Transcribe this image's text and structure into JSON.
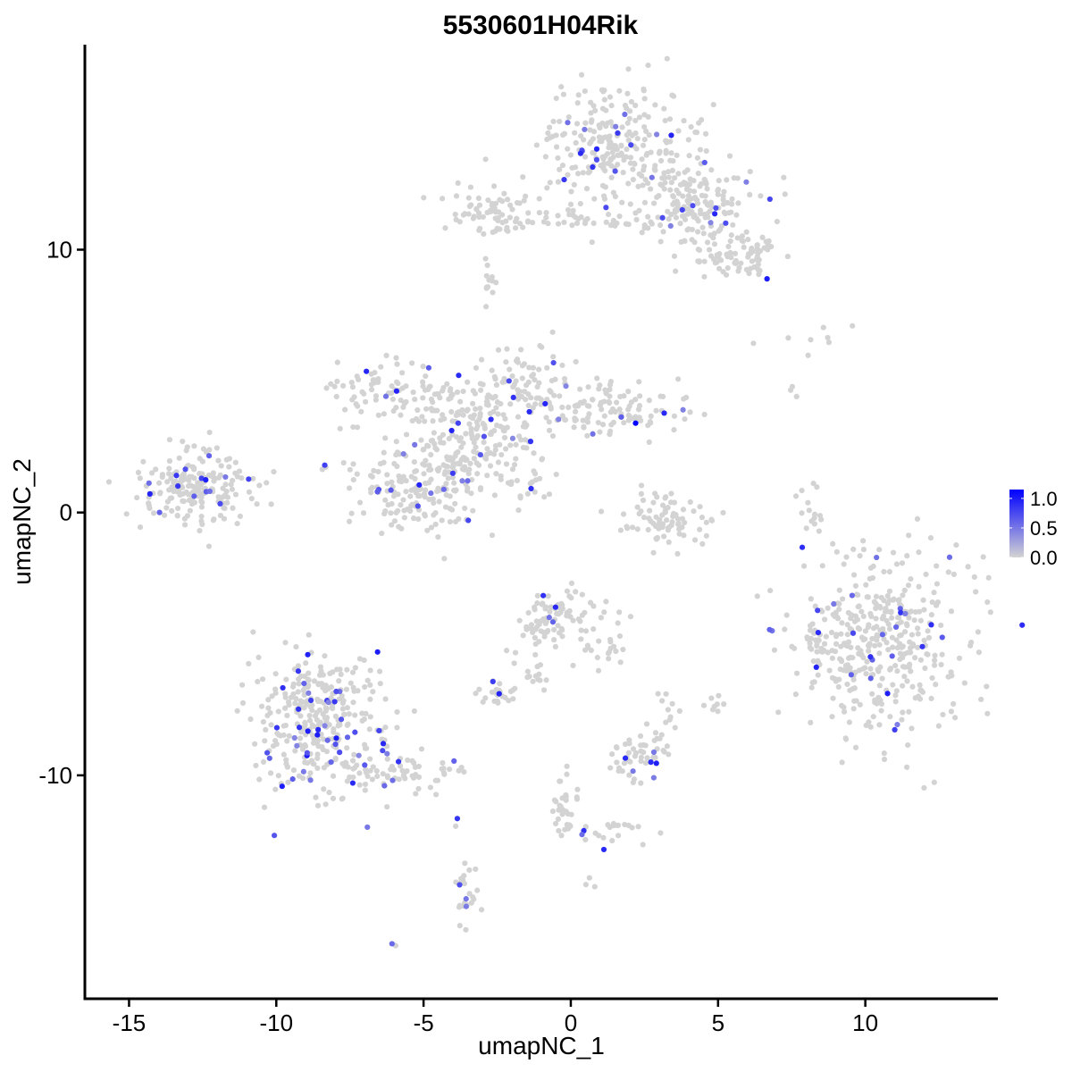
{
  "chart_data": {
    "type": "scatter",
    "title": "5530601H04Rik",
    "xlabel": "umapNC_1",
    "ylabel": "umapNC_2",
    "xlim": [
      -16.5,
      14.5
    ],
    "ylim": [
      -18.5,
      17.8
    ],
    "x_ticks": [
      -15,
      -10,
      -5,
      0,
      5,
      10
    ],
    "x_tick_labels": [
      "-15",
      "-10",
      "-5",
      "0",
      "5",
      "10"
    ],
    "y_ticks": [
      -10,
      0,
      10
    ],
    "y_tick_labels": [
      "-10",
      "0",
      "10"
    ],
    "grid": false,
    "legend": {
      "placement": "right",
      "type": "colorbar",
      "low_color": "#d3d3d3",
      "high_color": "#0000ff",
      "min": 0.0,
      "max": 1.15,
      "ticks": [
        0.0,
        0.5,
        1.0
      ],
      "tick_labels": [
        "0.0",
        "0.5",
        "1.0"
      ]
    },
    "point_color_low": "#d3d3d3",
    "point_color_high": "#0000ff",
    "clusters": [
      {
        "cx": 1.5,
        "cy": 14.0,
        "sx": 1.3,
        "sy": 1.2,
        "n": 260,
        "frac": 0.06
      },
      {
        "cx": 4.5,
        "cy": 11.8,
        "sx": 1.0,
        "sy": 0.8,
        "n": 150,
        "frac": 0.06
      },
      {
        "cx": 5.5,
        "cy": 9.8,
        "sx": 0.9,
        "sy": 0.5,
        "n": 80,
        "frac": 0.05
      },
      {
        "cx": -2.8,
        "cy": 11.4,
        "sx": 0.7,
        "sy": 0.5,
        "n": 70,
        "frac": 0.03
      },
      {
        "cx": 0.5,
        "cy": 11.1,
        "sx": 1.6,
        "sy": 0.2,
        "n": 40,
        "frac": 0.02
      },
      {
        "cx": -2.8,
        "cy": 8.9,
        "sx": 0.2,
        "sy": 0.4,
        "n": 12,
        "frac": 0.0
      },
      {
        "cx": -3.0,
        "cy": 3.3,
        "sx": 1.0,
        "sy": 1.0,
        "n": 150,
        "frac": 0.05
      },
      {
        "cx": -6.0,
        "cy": 4.5,
        "sx": 1.1,
        "sy": 0.6,
        "n": 90,
        "frac": 0.07
      },
      {
        "cx": -1.5,
        "cy": 5.0,
        "sx": 0.7,
        "sy": 0.9,
        "n": 70,
        "frac": 0.04
      },
      {
        "cx": 1.5,
        "cy": 4.0,
        "sx": 1.2,
        "sy": 0.5,
        "n": 110,
        "frac": 0.08
      },
      {
        "cx": -5.5,
        "cy": 1.0,
        "sx": 1.1,
        "sy": 0.9,
        "n": 150,
        "frac": 0.04
      },
      {
        "cx": -4.2,
        "cy": 1.8,
        "sx": 0.6,
        "sy": 1.2,
        "n": 80,
        "frac": 0.06
      },
      {
        "cx": -1.5,
        "cy": 1.2,
        "sx": 0.5,
        "sy": 0.4,
        "n": 20,
        "frac": 0.1
      },
      {
        "cx": -12.8,
        "cy": 1.0,
        "sx": 1.0,
        "sy": 0.7,
        "n": 200,
        "frac": 0.06
      },
      {
        "cx": 3.2,
        "cy": -0.3,
        "sx": 0.8,
        "sy": 0.6,
        "n": 80,
        "frac": 0.03
      },
      {
        "cx": 8.2,
        "cy": 0.0,
        "sx": 0.2,
        "sy": 0.6,
        "n": 15,
        "frac": 0.0
      },
      {
        "cx": 10.5,
        "cy": -5.0,
        "sx": 1.5,
        "sy": 1.8,
        "n": 420,
        "frac": 0.05
      },
      {
        "cx": 8.2,
        "cy": -4.8,
        "sx": 0.2,
        "sy": 0.6,
        "n": 15,
        "frac": 0.0
      },
      {
        "cx": -0.5,
        "cy": -3.9,
        "sx": 0.6,
        "sy": 0.6,
        "n": 80,
        "frac": 0.05
      },
      {
        "cx": 1.0,
        "cy": -5.0,
        "sx": 0.6,
        "sy": 0.5,
        "n": 25,
        "frac": 0.0
      },
      {
        "cx": -1.2,
        "cy": -5.5,
        "sx": 0.3,
        "sy": 0.7,
        "n": 20,
        "frac": 0.0
      },
      {
        "cx": -2.5,
        "cy": -6.9,
        "sx": 0.4,
        "sy": 0.2,
        "n": 25,
        "frac": 0.15
      },
      {
        "cx": -8.5,
        "cy": -8.0,
        "sx": 1.1,
        "sy": 1.3,
        "n": 340,
        "frac": 0.14
      },
      {
        "cx": -5.5,
        "cy": -9.9,
        "sx": 1.0,
        "sy": 0.4,
        "n": 60,
        "frac": 0.07
      },
      {
        "cx": 2.3,
        "cy": -9.3,
        "sx": 0.5,
        "sy": 0.5,
        "n": 50,
        "frac": 0.12
      },
      {
        "cx": 3.2,
        "cy": -7.4,
        "sx": 0.3,
        "sy": 0.5,
        "n": 12,
        "frac": 0.0
      },
      {
        "cx": 5.0,
        "cy": -7.3,
        "sx": 0.2,
        "sy": 0.2,
        "n": 8,
        "frac": 0.25
      },
      {
        "cx": -0.2,
        "cy": -11.0,
        "sx": 0.2,
        "sy": 0.7,
        "n": 30,
        "frac": 0.0
      },
      {
        "cx": 1.5,
        "cy": -12.2,
        "sx": 0.7,
        "sy": 0.3,
        "n": 25,
        "frac": 0.04
      },
      {
        "cx": -3.5,
        "cy": -14.5,
        "sx": 0.2,
        "sy": 0.7,
        "n": 25,
        "frac": 0.12
      },
      {
        "cx": -3.9,
        "cy": -11.8,
        "sx": 0.1,
        "sy": 0.1,
        "n": 2,
        "frac": 0.5
      },
      {
        "cx": -6.0,
        "cy": -16.4,
        "sx": 0.1,
        "sy": 0.1,
        "n": 2,
        "frac": 0.5
      },
      {
        "cx": 0.6,
        "cy": -14.0,
        "sx": 0.1,
        "sy": 0.1,
        "n": 3,
        "frac": 0.0
      },
      {
        "cx": 8.5,
        "cy": 6.6,
        "sx": 1.0,
        "sy": 0.3,
        "n": 8,
        "frac": 0.2
      },
      {
        "cx": 7.5,
        "cy": 4.7,
        "sx": 0.1,
        "sy": 0.2,
        "n": 3,
        "frac": 0.3
      }
    ],
    "expr_range": [
      0.4,
      1.0
    ],
    "max_point": {
      "x": 2.2,
      "y": 3.4,
      "value": 1.15
    }
  }
}
